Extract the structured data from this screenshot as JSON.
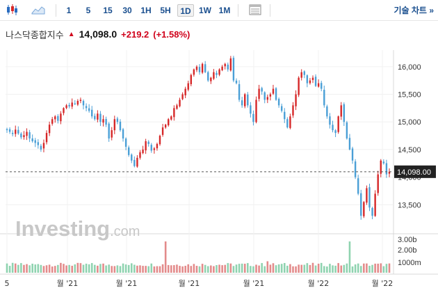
{
  "toolbar": {
    "intervals": [
      "1",
      "5",
      "15",
      "30",
      "1H",
      "5H",
      "1D",
      "1W",
      "1M"
    ],
    "active_interval": "1D",
    "chart_type_label": "기술 차트",
    "chevron": "»"
  },
  "header": {
    "name": "나스닥종합지수",
    "price": "14,098.0",
    "change": "+219.2",
    "change_pct": "(+1.58%)",
    "up_color": "#d0021b"
  },
  "watermark": {
    "brand": "Investing",
    "suffix": ".com"
  },
  "current_price_label": "14,098.00",
  "chart_data": {
    "type": "candlestick",
    "ylim": [
      13000,
      16300
    ],
    "price_ticks": [
      13500,
      14000,
      14500,
      15000,
      15500,
      16000
    ],
    "price_tick_labels": [
      "13,500",
      "14,000",
      "14,500",
      "15,000",
      "15,500",
      "16,000"
    ],
    "current_price": 14098.0,
    "x_tick_labels": [
      "5",
      "월 '21",
      "월 '21",
      "월 '21",
      "월 '21",
      "월 '22",
      "월 '22"
    ],
    "volume_tick_labels": [
      "3.00b",
      "2.00b",
      "1000m"
    ],
    "volume_ylim": [
      0,
      3.6
    ],
    "colors": {
      "up": "#d62728",
      "down": "#4a9fd6",
      "vol_up": "#e38b8b",
      "vol_down": "#8fd3b0"
    },
    "closes": [
      14850,
      14820,
      14780,
      14860,
      14790,
      14720,
      14760,
      14820,
      14700,
      14650,
      14620,
      14580,
      14500,
      14620,
      14800,
      14950,
      15050,
      15100,
      15020,
      15150,
      15250,
      15300,
      15280,
      15350,
      15320,
      15380,
      15400,
      15300,
      15250,
      15200,
      15100,
      15050,
      15150,
      15000,
      15050,
      14950,
      14700,
      14850,
      15050,
      15000,
      14850,
      14700,
      14550,
      14400,
      14300,
      14200,
      14350,
      14450,
      14500,
      14650,
      14600,
      14480,
      14520,
      14600,
      14750,
      14900,
      14950,
      15050,
      15100,
      15250,
      15300,
      15400,
      15500,
      15600,
      15700,
      15850,
      15950,
      16000,
      15900,
      16050,
      15900,
      15750,
      15800,
      15900,
      15850,
      15950,
      16000,
      16050,
      15950,
      16150,
      15750,
      15700,
      15400,
      15300,
      15500,
      15300,
      15150,
      15000,
      15400,
      15600,
      15550,
      15400,
      15450,
      15500,
      15600,
      15400,
      15300,
      15200,
      15050,
      14900,
      15100,
      15300,
      15500,
      15800,
      15900,
      15850,
      15700,
      15750,
      15800,
      15650,
      15700,
      15600,
      15300,
      15100,
      14950,
      14850,
      14800,
      15100,
      15300,
      15000,
      14700,
      14500,
      14300,
      14000,
      13700,
      13300,
      13550,
      13800,
      13450,
      13300,
      13700,
      14050,
      14300,
      14250,
      14050,
      14098
    ]
  }
}
